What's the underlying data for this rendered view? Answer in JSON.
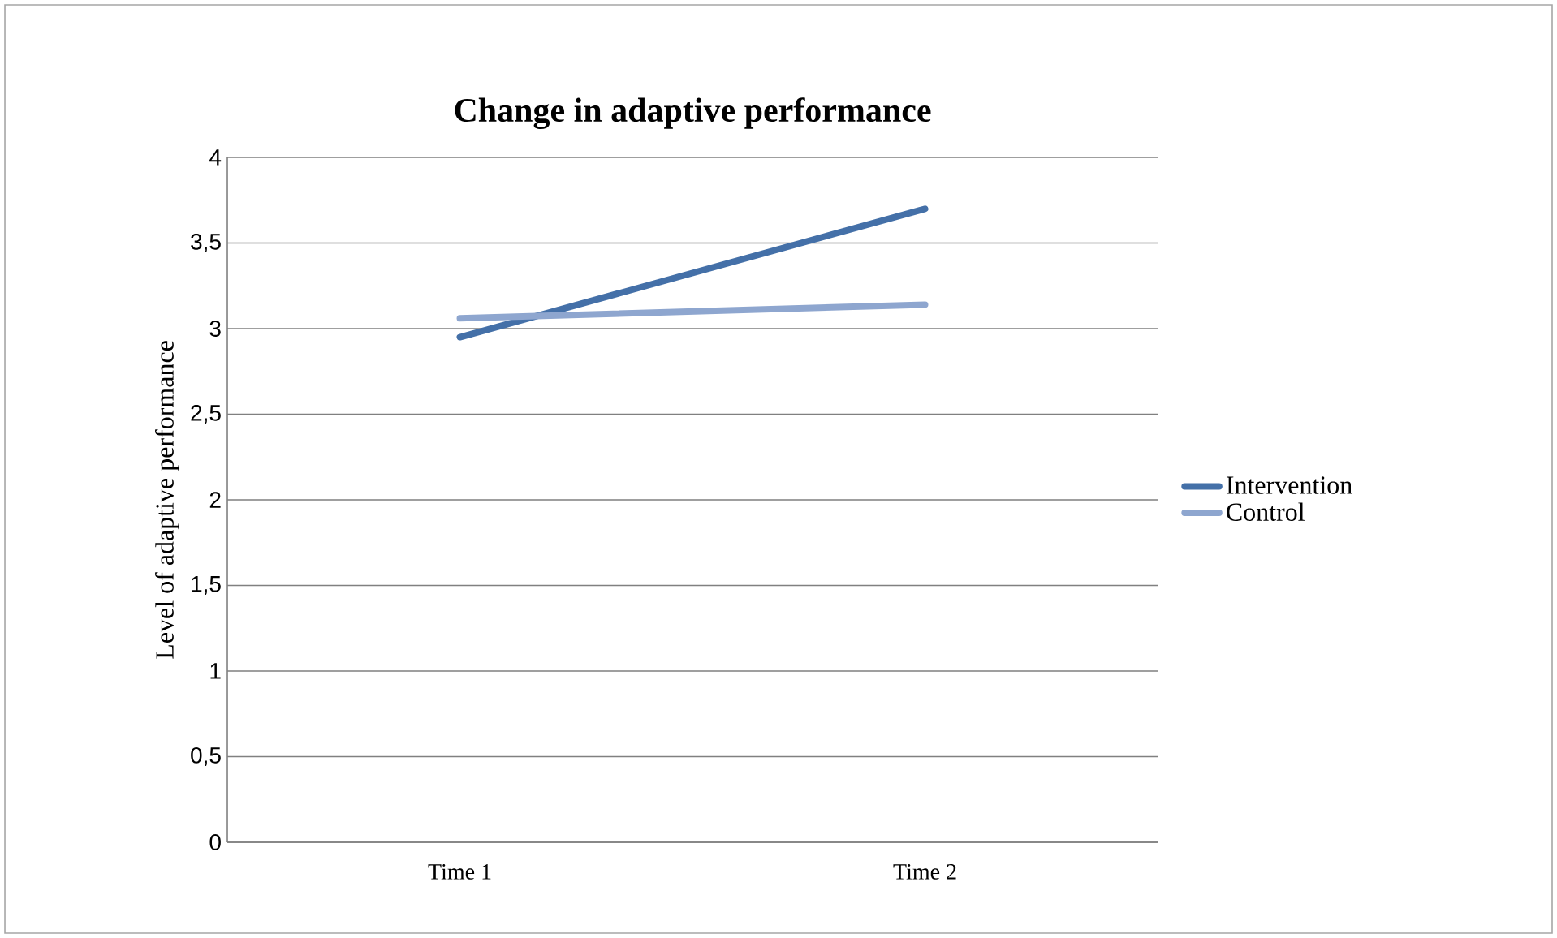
{
  "chart_data": {
    "type": "line",
    "title": "Change in adaptive performance",
    "ylabel": "Level of adaptive performance",
    "categories": [
      "Time 1",
      "Time 2"
    ],
    "series": [
      {
        "name": "Intervention",
        "color": "#4470a8",
        "values": [
          2.95,
          3.7
        ]
      },
      {
        "name": "Control",
        "color": "#8ea6cf",
        "values": [
          3.06,
          3.14
        ]
      }
    ],
    "ylim": [
      0,
      4
    ],
    "yticks": [
      0,
      {
        "value": 0.5,
        "label": "0,5"
      },
      1,
      {
        "value": 1.5,
        "label": "1,5"
      },
      2,
      {
        "value": 2.5,
        "label": "2,5"
      },
      3,
      {
        "value": 3.5,
        "label": "3,5"
      },
      4
    ],
    "grid": "y",
    "legend": "right",
    "marker": "none",
    "line_style": "solid"
  }
}
